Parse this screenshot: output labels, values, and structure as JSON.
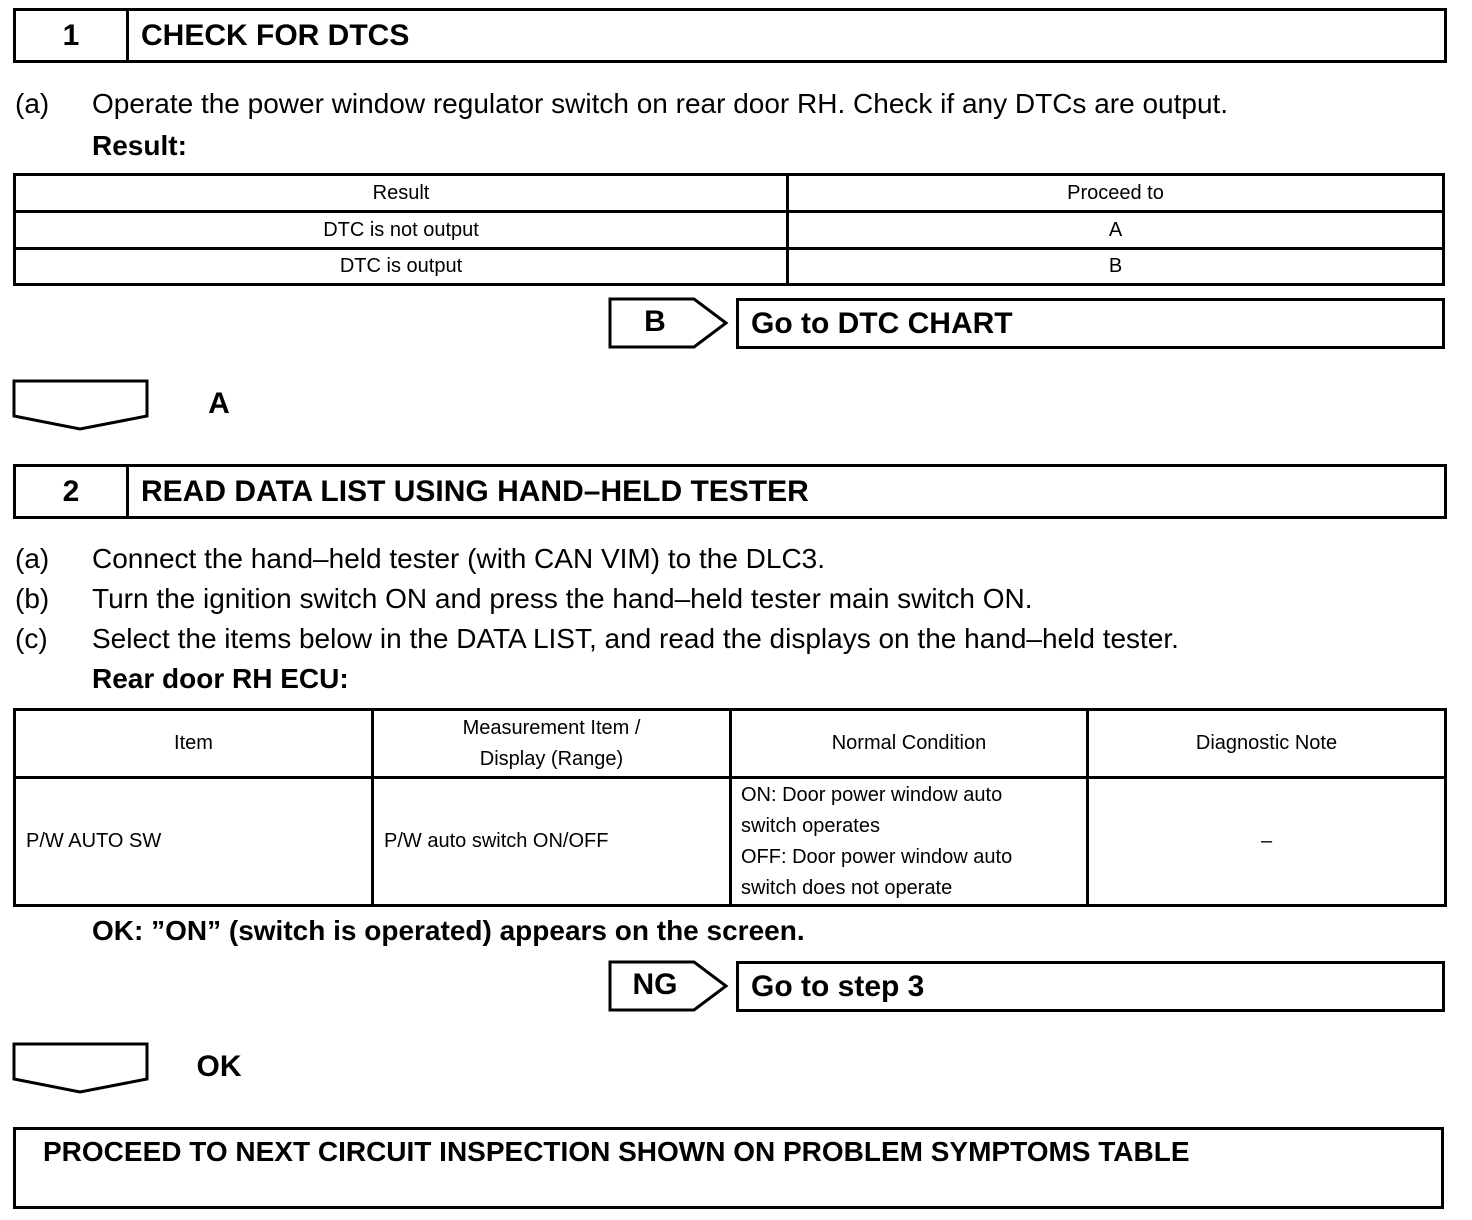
{
  "step1": {
    "number": "1",
    "title": "CHECK FOR DTCS",
    "instructions": [
      {
        "label": "(a)",
        "text": "Operate the power window regulator switch on rear door RH. Check if any DTCs are output."
      }
    ],
    "result_heading": "Result:",
    "table": {
      "headers": [
        "Result",
        "Proceed to"
      ],
      "rows": [
        [
          "DTC is not output",
          "A"
        ],
        [
          "DTC is output",
          "B"
        ]
      ]
    },
    "branch": {
      "label": "B",
      "target": "Go to DTC CHART"
    },
    "continue_label": "A"
  },
  "step2": {
    "number": "2",
    "title": "READ DATA LIST USING HAND–HELD TESTER",
    "instructions": [
      {
        "label": "(a)",
        "text": "Connect the hand–held tester (with CAN VIM) to the DLC3."
      },
      {
        "label": "(b)",
        "text": "Turn the ignition switch ON and press the hand–held tester main switch ON."
      },
      {
        "label": "(c)",
        "text": "Select the items below in the DATA LIST, and read the displays on the hand–held tester."
      }
    ],
    "table_heading": "Rear door RH ECU:",
    "table": {
      "headers": [
        "Item",
        "Measurement Item /\nDisplay (Range)",
        "Normal Condition",
        "Diagnostic Note"
      ],
      "rows": [
        [
          "P/W AUTO SW",
          "P/W auto switch ON/OFF",
          "ON: Door power window auto\nswitch operates\nOFF: Door power window auto\nswitch does not operate",
          "–"
        ]
      ]
    },
    "ok_condition": "OK: ”ON” (switch is operated) appears on the screen.",
    "branch": {
      "label": "NG",
      "target": "Go to step 3"
    },
    "continue_label": "OK"
  },
  "final": {
    "text": "PROCEED TO NEXT CIRCUIT INSPECTION SHOWN ON PROBLEM SYMPTOMS TABLE"
  }
}
